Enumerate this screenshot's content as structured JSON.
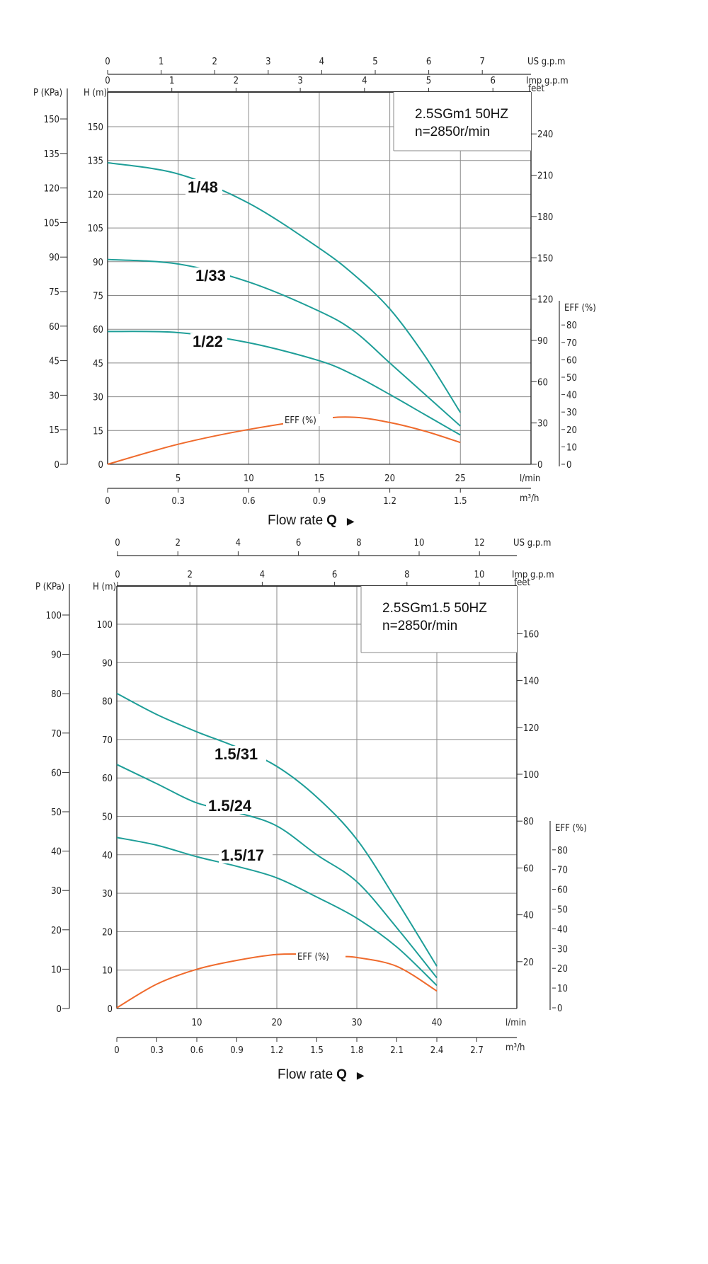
{
  "chart_data": [
    {
      "type": "line",
      "title_line1": "2.5SGm1 50HZ",
      "title_line2": "n=2850r/min",
      "xlabel": "Flow rate",
      "xlabel_symbol": "Q",
      "xlabel_arrow": "▶",
      "x_lpm": {
        "label": "l/min",
        "ticks": [
          5,
          10,
          15,
          20,
          25
        ],
        "range": [
          0,
          30
        ]
      },
      "x_m3h": {
        "label": "m³/h",
        "ticks": [
          "0",
          "0.3",
          "0.6",
          "0.9",
          "1.2",
          "1.5"
        ]
      },
      "x_us_gpm": {
        "label": "US g.p.m",
        "ticks": [
          0,
          1,
          2,
          3,
          4,
          5,
          6,
          7
        ]
      },
      "x_imp_gpm": {
        "label": "Imp g.p.m",
        "ticks": [
          0,
          1,
          2,
          3,
          4,
          5,
          6
        ]
      },
      "y_h": {
        "label": "H (m)",
        "ticks": [
          0,
          15,
          30,
          45,
          60,
          75,
          90,
          105,
          120,
          135,
          150
        ],
        "range": [
          0,
          165
        ]
      },
      "y_p": {
        "label": "P (KPa)",
        "ticks": [
          0,
          15,
          30,
          45,
          60,
          75,
          90,
          105,
          120,
          135,
          150
        ]
      },
      "y_feet": {
        "label": "feet",
        "ticks": [
          0,
          30,
          60,
          90,
          120,
          150,
          180,
          210,
          240
        ]
      },
      "y_eff": {
        "label": "EFF (%)",
        "ticks": [
          0,
          10,
          20,
          30,
          40,
          50,
          60,
          70,
          80
        ]
      },
      "grid": true,
      "series": [
        {
          "name": "1/48",
          "q": [
            0,
            5,
            10,
            15,
            17.5,
            20,
            22.5,
            25
          ],
          "h": [
            134,
            129,
            116,
            96,
            84,
            69,
            48,
            23
          ]
        },
        {
          "name": "1/33",
          "q": [
            0,
            5,
            10,
            15,
            17.5,
            20,
            22.5,
            25
          ],
          "h": [
            91,
            89,
            81,
            68,
            59,
            45,
            31,
            17
          ]
        },
        {
          "name": "1/22",
          "q": [
            0,
            5,
            10,
            15,
            17.5,
            20,
            22.5,
            25
          ],
          "h": [
            59,
            58.5,
            54,
            46,
            39.5,
            31,
            22,
            13
          ]
        }
      ],
      "efficiency": {
        "name": "EFF (%)",
        "q": [
          0,
          5,
          10,
          15,
          17.5,
          20,
          22.5,
          25
        ],
        "eff": [
          0,
          11.5,
          20,
          26,
          27,
          24,
          19,
          12.5
        ]
      },
      "colors": {
        "head": "#1e9e98",
        "eff": "#ef6a2c"
      }
    },
    {
      "type": "line",
      "title_line1": "2.5SGm1.5 50HZ",
      "title_line2": "n=2850r/min",
      "xlabel": "Flow rate",
      "xlabel_symbol": "Q",
      "xlabel_arrow": "▶",
      "x_lpm": {
        "label": "l/min",
        "ticks": [
          10,
          20,
          30,
          40
        ],
        "range": [
          0,
          50
        ]
      },
      "x_m3h": {
        "label": "m³/h",
        "ticks": [
          "0",
          "0.3",
          "0.6",
          "0.9",
          "1.2",
          "1.5",
          "1.8",
          "2.1",
          "2.4",
          "2.7"
        ]
      },
      "x_us_gpm": {
        "label": "US g.p.m",
        "ticks": [
          0,
          2,
          4,
          6,
          8,
          10,
          12
        ]
      },
      "x_imp_gpm": {
        "label": "Imp g.p.m",
        "ticks": [
          0,
          2,
          4,
          6,
          8,
          10
        ]
      },
      "y_h": {
        "label": "H (m)",
        "ticks": [
          0,
          10,
          20,
          30,
          40,
          50,
          60,
          70,
          80,
          90,
          100
        ],
        "range": [
          0,
          110
        ]
      },
      "y_p": {
        "label": "P (KPa)",
        "ticks": [
          0,
          10,
          20,
          30,
          40,
          50,
          60,
          70,
          80,
          90,
          100
        ]
      },
      "y_feet": {
        "label": "feet",
        "ticks": [
          20,
          40,
          60,
          80,
          100,
          120,
          140,
          160
        ]
      },
      "y_eff": {
        "label": "EFF (%)",
        "ticks": [
          0,
          10,
          20,
          30,
          40,
          50,
          60,
          70,
          80
        ]
      },
      "grid": true,
      "series": [
        {
          "name": "1.5/31",
          "q": [
            0,
            5,
            10,
            15,
            20,
            25,
            30,
            35,
            40
          ],
          "h": [
            82,
            76.5,
            72,
            68,
            63,
            55,
            44,
            28,
            11
          ]
        },
        {
          "name": "1.5/24",
          "q": [
            0,
            5,
            10,
            15,
            20,
            25,
            30,
            35,
            40
          ],
          "h": [
            63.5,
            58.5,
            53.5,
            51,
            47.5,
            40,
            33,
            21,
            8
          ]
        },
        {
          "name": "1.5/17",
          "q": [
            0,
            5,
            10,
            15,
            20,
            25,
            30,
            35,
            40
          ],
          "h": [
            44.5,
            42.5,
            39.5,
            37,
            34,
            29,
            23.5,
            16,
            6
          ]
        }
      ],
      "efficiency": {
        "name": "EFF (%)",
        "q": [
          0,
          5,
          10,
          15,
          20,
          25,
          28,
          30,
          35,
          40
        ],
        "eff": [
          0,
          12,
          19.5,
          24,
          27,
          27,
          26,
          25.5,
          21,
          8.5
        ]
      },
      "colors": {
        "head": "#1e9e98",
        "eff": "#ef6a2c"
      }
    }
  ]
}
